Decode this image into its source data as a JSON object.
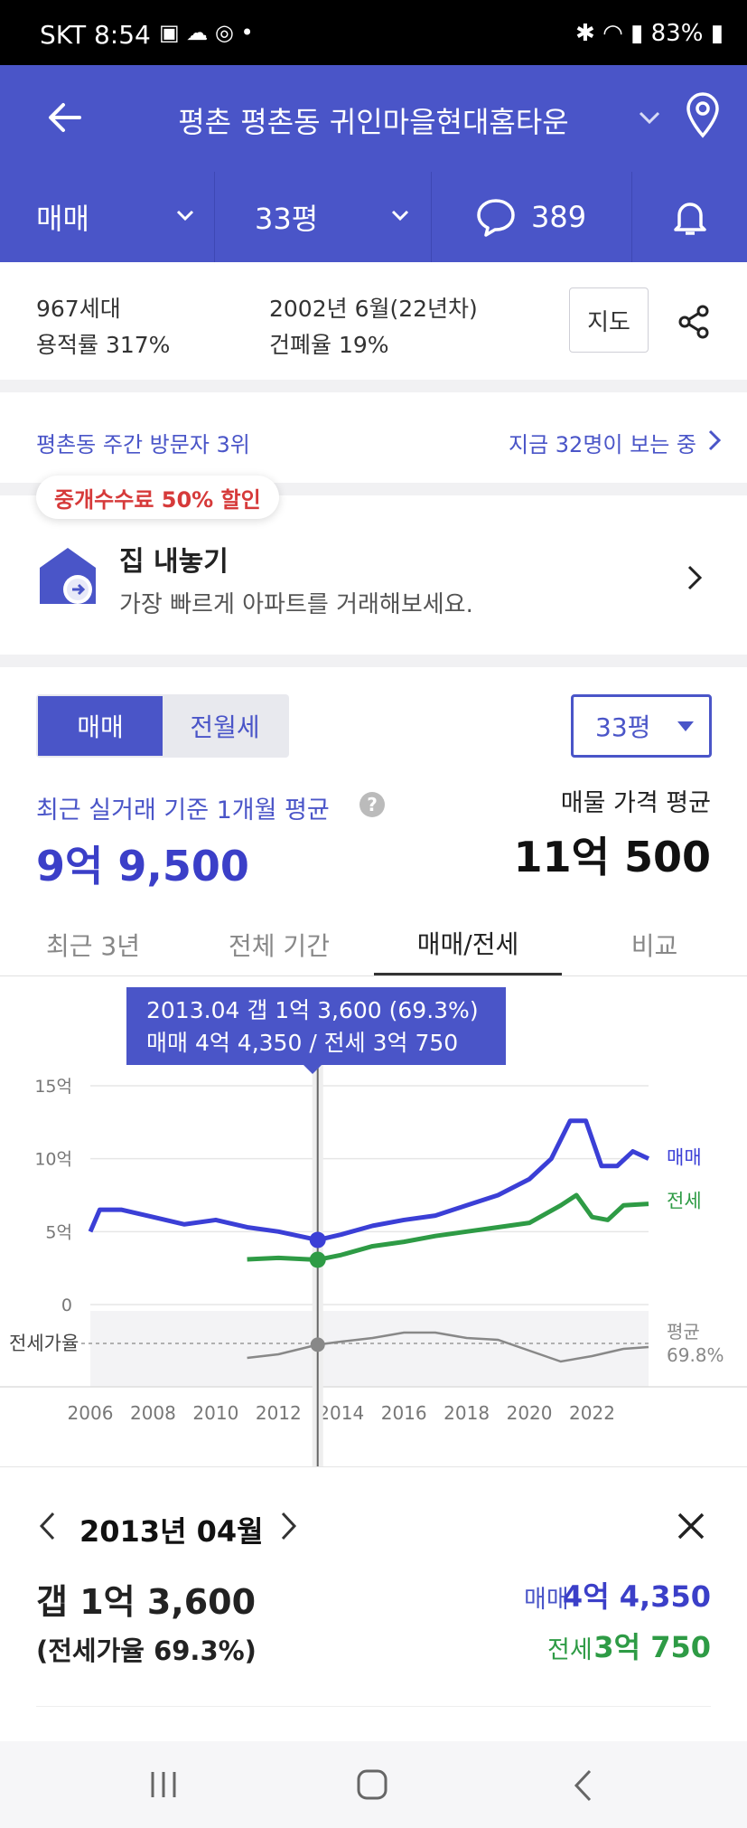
{
  "status_bar": {
    "carrier_time": "SKT 8:54",
    "battery": "83%"
  },
  "header": {
    "title": "평촌 평촌동 귀인마을현대홈타운"
  },
  "subheader": {
    "trade_type": "매매",
    "size": "33평",
    "comment_count": "389"
  },
  "info": {
    "households": "967세대",
    "floor_area_ratio": "용적률 317%",
    "built": "2002년 6월(22년차)",
    "coverage_ratio": "건폐율 19%",
    "map_button": "지도"
  },
  "visitors": {
    "rank": "평촌동 주간 방문자 3위",
    "viewing_now": "지금 32명이 보는 중"
  },
  "sell_promo": {
    "badge": "중개수수료 50% 할인",
    "title": "집 내놓기",
    "subtitle": "가장 빠르게 아파트를 거래해보세요."
  },
  "price": {
    "seg_on": "매매",
    "seg_off": "전월세",
    "size_select": "33평",
    "recent_label": "최근 실거래 기준 1개월 평균",
    "recent_value": "9억 9,500",
    "listing_label": "매물 가격 평균",
    "listing_value": "11억 500"
  },
  "tabs": [
    "최근 3년",
    "전체 기간",
    "매매/전세",
    "비교"
  ],
  "tooltip": {
    "line1": "2013.04  갭 1억 3,600 (69.3%)",
    "line2": "매매 4억 4,350 / 전세 3억 750"
  },
  "chart_data": {
    "type": "line",
    "y_ticks": [
      "15억",
      "10억",
      "5억",
      "0"
    ],
    "x_ticks": [
      "2006",
      "2008",
      "2010",
      "2012",
      "2014",
      "2016",
      "2018",
      "2020",
      "2022"
    ],
    "ylim": [
      0,
      15
    ],
    "series": [
      {
        "name": "매매",
        "color": "#3b3fd6",
        "x": [
          2006,
          2006.3,
          2007,
          2008,
          2009,
          2010,
          2011,
          2012,
          2013.25,
          2014,
          2015,
          2016,
          2017,
          2018,
          2019,
          2020,
          2020.7,
          2021.3,
          2021.8,
          2022.3,
          2022.8,
          2023.3,
          2023.8
        ],
        "y": [
          5.0,
          6.5,
          6.5,
          6.0,
          5.5,
          5.8,
          5.3,
          5.0,
          4.43,
          4.8,
          5.4,
          5.8,
          6.1,
          6.8,
          7.5,
          8.6,
          10.0,
          12.6,
          12.6,
          9.5,
          9.5,
          10.5,
          10.0
        ]
      },
      {
        "name": "전세",
        "color": "#2e9b45",
        "x": [
          2011,
          2012,
          2013.25,
          2014,
          2015,
          2016,
          2017,
          2018,
          2019,
          2020,
          2021,
          2021.5,
          2022,
          2022.5,
          2023,
          2023.8
        ],
        "y": [
          3.1,
          3.2,
          3.07,
          3.4,
          4.0,
          4.3,
          4.7,
          5.0,
          5.3,
          5.6,
          6.8,
          7.5,
          6.0,
          5.8,
          6.8,
          6.9
        ]
      }
    ],
    "series_labels": [
      "매매",
      "전세"
    ],
    "ratio_label": "전세가율",
    "ratio_avg_label": "평균",
    "ratio_avg_value": "69.8%",
    "ratio_series": {
      "x": [
        2011,
        2012,
        2013.25,
        2014,
        2015,
        2016,
        2017,
        2018,
        2019,
        2020,
        2021,
        2022,
        2023,
        2023.8
      ],
      "y": [
        62,
        64,
        69.3,
        71,
        73,
        76,
        76,
        73,
        72,
        66,
        60,
        63,
        67,
        68
      ]
    }
  },
  "detail": {
    "month": "2013년 04월",
    "gap": "갭 1억 3,600",
    "ratio": "(전세가율 69.3%)",
    "sale_label": "매매",
    "sale_value": "4억 4,350",
    "jeonse_label": "전세",
    "jeonse_value": "3억 750"
  }
}
